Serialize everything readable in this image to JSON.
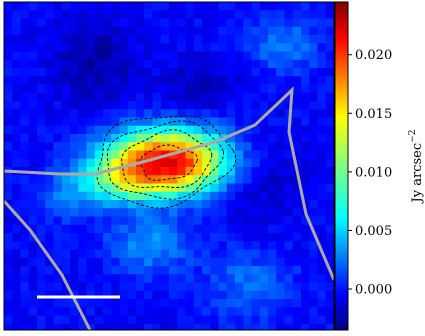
{
  "chart_data": {
    "type": "heatmap",
    "title": "",
    "xlabel": "",
    "ylabel": "",
    "colormap": "jet",
    "colorbar": {
      "label": "Jy arcsec",
      "label_superscript": "−2",
      "range": [
        -0.0035,
        0.0245
      ],
      "ticks": [
        0.0,
        0.005,
        0.01,
        0.015,
        0.02
      ],
      "tick_labels": [
        "0.000",
        "0.005",
        "0.010",
        "0.015",
        "0.020"
      ]
    },
    "source_peak_jy_per_arcsec2": 0.022,
    "contours": {
      "style": "dashed",
      "color": "#000000",
      "levels": [
        0.004,
        0.006,
        0.008,
        0.012
      ]
    },
    "overlay_lines_color": "#aaaaaa",
    "scale_bar_color": "#ffffff",
    "grid": false
  }
}
